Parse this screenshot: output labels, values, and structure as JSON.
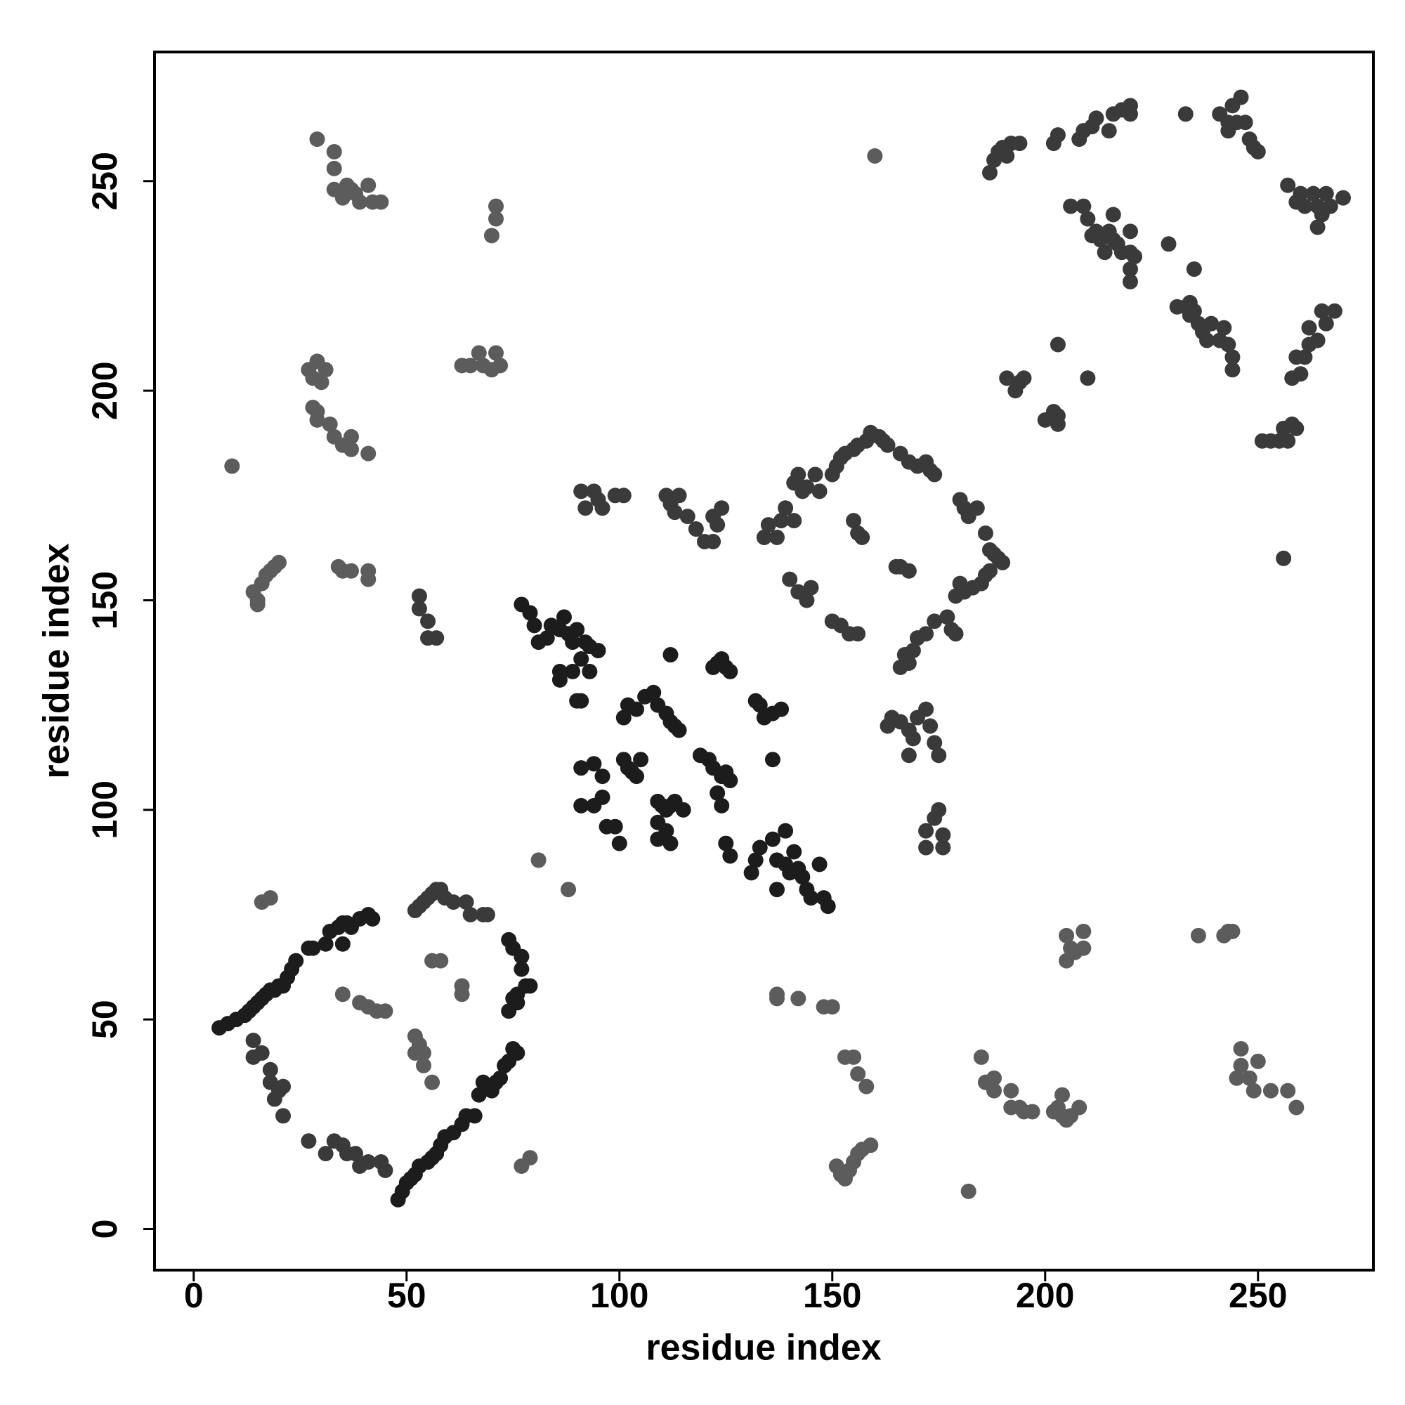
{
  "chart_data": {
    "type": "scatter",
    "xlabel": "residue index",
    "ylabel": "residue index",
    "xlim": [
      -9.2,
      277.1
    ],
    "ylim": [
      -9.8,
      280.8
    ],
    "xticks": [
      0,
      50,
      100,
      150,
      200,
      250
    ],
    "yticks": [
      0,
      50,
      100,
      150,
      200,
      250
    ],
    "series": [
      {
        "color": "#1c1c1c",
        "x": [
          6,
          8,
          10,
          12,
          13,
          14,
          15,
          16,
          17,
          18,
          19,
          20,
          21,
          22,
          23,
          24,
          27,
          28,
          31,
          32,
          34,
          35,
          36,
          37,
          39,
          41,
          42,
          35,
          74,
          75,
          77,
          77,
          78,
          79,
          76,
          75,
          76,
          74,
          75,
          76,
          74,
          73,
          72,
          71,
          70,
          68,
          67,
          66,
          64,
          63,
          61,
          59,
          58,
          57,
          56,
          55,
          53,
          52,
          51,
          50,
          49,
          48,
          77,
          79,
          80,
          81,
          83,
          84,
          86,
          87,
          88,
          89,
          90,
          92,
          93,
          91,
          89,
          86,
          86,
          90,
          91,
          93,
          95,
          91,
          94,
          96,
          91,
          94,
          96,
          97,
          99,
          100,
          101,
          102,
          103,
          104,
          105,
          101,
          102,
          104,
          106,
          108,
          109,
          111,
          112,
          113,
          114,
          109,
          110,
          111,
          112,
          113,
          109,
          111,
          109,
          112,
          115,
          112,
          119,
          121,
          122,
          124,
          125,
          126,
          123,
          124,
          125,
          126,
          122,
          123,
          124,
          125,
          126,
          132,
          133,
          134,
          136,
          138,
          136,
          131,
          132,
          133,
          136,
          137,
          139,
          139,
          140,
          141,
          142,
          143,
          144,
          145,
          147,
          148,
          149,
          137
        ],
        "values": [
          48,
          49,
          50,
          51,
          52,
          53,
          54,
          55,
          56,
          57,
          57,
          58,
          58,
          60,
          62,
          64,
          67,
          67,
          68,
          71,
          72,
          73,
          73,
          72,
          74,
          75,
          74,
          68,
          69,
          67,
          65,
          62,
          58,
          58,
          56,
          55,
          54,
          52,
          43,
          42,
          40,
          39,
          36,
          35,
          33,
          35,
          32,
          27,
          27,
          25,
          23,
          22,
          20,
          18,
          17,
          16,
          15,
          13,
          12,
          11,
          9,
          7,
          149,
          147,
          144,
          140,
          141,
          144,
          143,
          146,
          142,
          140,
          143,
          140,
          139,
          136,
          133,
          131,
          133,
          126,
          126,
          133,
          138,
          110,
          111,
          108,
          101,
          101,
          103,
          96,
          96,
          92,
          112,
          110,
          109,
          108,
          112,
          122,
          125,
          124,
          127,
          128,
          125,
          123,
          121,
          120,
          119,
          102,
          101,
          100,
          101,
          102,
          97,
          95,
          93,
          92,
          100,
          137,
          113,
          112,
          110,
          108,
          109,
          107,
          104,
          101,
          92,
          89,
          134,
          135,
          136,
          134,
          133,
          126,
          125,
          122,
          123,
          124,
          112,
          85,
          88,
          91,
          93,
          88,
          95,
          87,
          85,
          90,
          86,
          84,
          81,
          79,
          87,
          79,
          77,
          81
        ]
      },
      {
        "color": "#3a3a3a",
        "x": [
          52,
          53,
          54,
          55,
          56,
          57,
          58,
          59,
          61,
          64,
          65,
          68,
          69,
          45,
          44,
          41,
          39,
          38,
          36,
          35,
          33,
          31,
          27,
          14,
          16,
          18,
          18,
          19,
          20,
          21,
          21,
          14,
          91,
          92,
          94,
          95,
          96,
          99,
          101,
          111,
          112,
          113,
          114,
          116,
          118,
          120,
          122,
          123,
          124,
          122,
          134,
          135,
          137,
          138,
          139,
          141,
          141,
          142,
          143,
          144,
          146,
          147,
          140,
          142,
          144,
          145,
          150,
          151,
          152,
          153,
          155,
          156,
          158,
          159,
          161,
          162,
          163,
          166,
          168,
          170,
          172,
          173,
          174,
          180,
          181,
          182,
          184,
          186,
          187,
          188,
          189,
          190,
          187,
          186,
          185,
          183,
          181,
          180,
          179,
          155,
          156,
          157,
          165,
          166,
          168,
          150,
          152,
          154,
          156,
          177,
          178,
          179,
          174,
          172,
          170,
          169,
          168,
          167,
          166,
          163,
          164,
          166,
          168,
          169,
          170,
          172,
          173,
          174,
          175,
          168,
          172,
          174,
          175,
          176,
          176,
          172,
          53,
          53,
          55,
          55,
          57,
          187,
          188,
          189,
          190,
          191,
          192,
          194,
          202,
          203,
          208,
          209,
          211,
          212,
          215,
          216,
          218,
          220,
          220,
          233,
          241,
          243,
          243,
          244,
          245,
          246,
          247,
          248,
          249,
          250,
          206,
          209,
          210,
          211,
          212,
          213,
          214,
          215,
          216,
          216,
          217,
          218,
          220,
          220,
          220,
          220,
          221,
          229,
          231,
          234,
          234,
          235,
          236,
          237,
          238,
          239,
          241,
          242,
          243,
          244,
          244,
          235,
          233,
          210,
          203,
          191,
          193,
          194,
          195,
          200,
          202,
          203,
          203,
          251,
          253,
          255,
          256,
          257,
          258,
          259,
          256,
          257,
          259,
          260,
          261,
          263,
          264,
          264,
          265,
          266,
          267,
          270,
          258,
          259,
          260,
          261,
          262,
          262,
          264,
          265,
          266,
          268
        ],
        "values": [
          76,
          77,
          78,
          79,
          80,
          81,
          81,
          79,
          78,
          78,
          75,
          75,
          75,
          14,
          16,
          16,
          15,
          18,
          18,
          20,
          21,
          18,
          21,
          45,
          42,
          38,
          35,
          31,
          33,
          34,
          27,
          41,
          176,
          172,
          176,
          174,
          172,
          175,
          175,
          175,
          173,
          171,
          175,
          170,
          167,
          164,
          170,
          168,
          172,
          164,
          165,
          168,
          165,
          169,
          172,
          169,
          178,
          180,
          176,
          177,
          180,
          176,
          155,
          152,
          150,
          153,
          180,
          182,
          184,
          185,
          186,
          187,
          188,
          190,
          189,
          188,
          187,
          185,
          183,
          182,
          183,
          181,
          180,
          174,
          172,
          170,
          172,
          166,
          162,
          161,
          160,
          159,
          157,
          156,
          154,
          153,
          152,
          154,
          151,
          169,
          166,
          165,
          158,
          158,
          157,
          145,
          144,
          142,
          142,
          146,
          143,
          142,
          145,
          142,
          141,
          138,
          135,
          137,
          134,
          120,
          122,
          121,
          119,
          117,
          122,
          124,
          120,
          116,
          113,
          113,
          95,
          98,
          100,
          94,
          91,
          91,
          151,
          148,
          145,
          141,
          141,
          252,
          255,
          257,
          258,
          256,
          259,
          259,
          259,
          261,
          260,
          262,
          263,
          265,
          262,
          266,
          267,
          266,
          268,
          266,
          266,
          264,
          262,
          268,
          264,
          270,
          264,
          260,
          258,
          257,
          244,
          244,
          241,
          237,
          238,
          236,
          233,
          238,
          242,
          236,
          235,
          233,
          238,
          233,
          229,
          226,
          232,
          235,
          220,
          221,
          218,
          219,
          216,
          214,
          212,
          216,
          212,
          215,
          211,
          208,
          205,
          229,
          220,
          203,
          211,
          203,
          200,
          202,
          203,
          193,
          195,
          194,
          192,
          188,
          188,
          188,
          191,
          188,
          192,
          191,
          160,
          249,
          245,
          247,
          244,
          247,
          239,
          244,
          242,
          247,
          244,
          246,
          203,
          208,
          204,
          208,
          211,
          215,
          212,
          219,
          216,
          219
        ]
      },
      {
        "color": "#5c5c5c",
        "x": [
          35,
          39,
          41,
          43,
          45,
          52,
          53,
          52,
          54,
          54,
          56,
          56,
          58,
          63,
          63,
          79,
          77,
          16,
          18,
          81,
          88,
          9,
          14,
          15,
          16,
          17,
          18,
          19,
          20,
          15,
          27,
          28,
          29,
          30,
          31,
          28,
          29,
          29,
          32,
          33,
          35,
          37,
          37,
          41,
          34,
          35,
          37,
          41,
          41,
          29,
          33,
          33,
          33,
          35,
          36,
          37,
          38,
          39,
          41,
          42,
          44,
          70,
          71,
          71,
          63,
          65,
          67,
          68,
          70,
          71,
          72,
          160,
          137,
          137,
          142,
          148,
          150,
          153,
          155,
          156,
          158,
          151,
          152,
          153,
          154,
          155,
          156,
          157,
          159,
          182,
          185,
          186,
          188,
          188,
          192,
          192,
          194,
          195,
          197,
          202,
          203,
          204,
          205,
          206,
          208,
          204,
          205,
          206,
          205,
          207,
          209,
          209,
          236,
          242,
          243,
          244,
          245,
          246,
          246,
          248,
          249,
          250,
          253,
          257,
          259
        ],
        "values": [
          56,
          54,
          53,
          52,
          52,
          46,
          44,
          42,
          42,
          39,
          35,
          64,
          64,
          58,
          56,
          17,
          15,
          78,
          79,
          88,
          81,
          182,
          152,
          150,
          154,
          156,
          157,
          158,
          159,
          149,
          205,
          203,
          207,
          202,
          205,
          196,
          193,
          195,
          192,
          189,
          187,
          186,
          189,
          185,
          158,
          157,
          157,
          157,
          155,
          260,
          257,
          253,
          248,
          246,
          249,
          248,
          247,
          245,
          249,
          245,
          245,
          237,
          241,
          244,
          206,
          206,
          209,
          206,
          205,
          209,
          206,
          256,
          56,
          55,
          55,
          53,
          53,
          41,
          41,
          37,
          34,
          15,
          13,
          12,
          14,
          16,
          18,
          19,
          20,
          9,
          41,
          35,
          33,
          36,
          29,
          33,
          29,
          28,
          28,
          28,
          29,
          27,
          26,
          27,
          29,
          32,
          70,
          67,
          64,
          66,
          71,
          67,
          70,
          70,
          71,
          71,
          36,
          39,
          43,
          36,
          33,
          40,
          33,
          33,
          29
        ]
      }
    ]
  }
}
